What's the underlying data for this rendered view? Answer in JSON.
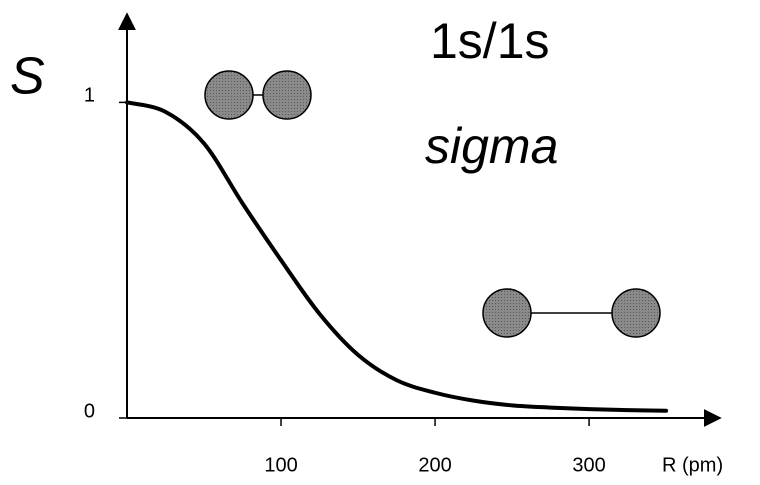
{
  "chart_data": {
    "type": "line",
    "title": "1s/1s",
    "subtitle": "sigma",
    "y_label": "S",
    "x_label": "R (pm)",
    "x": [
      0,
      25,
      50,
      75,
      100,
      125,
      150,
      175,
      200,
      225,
      250,
      275,
      300,
      325,
      350
    ],
    "values": [
      1.0,
      0.97,
      0.87,
      0.68,
      0.5,
      0.33,
      0.2,
      0.12,
      0.08,
      0.055,
      0.04,
      0.033,
      0.028,
      0.025,
      0.023
    ],
    "color": "#000000",
    "xlim": [
      0,
      385
    ],
    "ylim": [
      0,
      1.28
    ],
    "xticks": [
      100,
      200,
      300
    ],
    "yticks": [
      0,
      1
    ],
    "grid": false
  }
}
